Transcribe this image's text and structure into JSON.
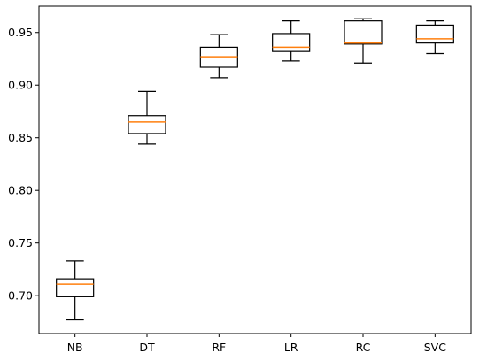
{
  "chart_data": {
    "type": "box",
    "title": "",
    "xlabel": "",
    "ylabel": "",
    "categories": [
      "NB",
      "DT",
      "RF",
      "LR",
      "RC",
      "SVC"
    ],
    "boxes": [
      {
        "category": "NB",
        "whisker_low": 0.677,
        "q1": 0.699,
        "median": 0.711,
        "q3": 0.716,
        "whisker_high": 0.733
      },
      {
        "category": "DT",
        "whisker_low": 0.844,
        "q1": 0.854,
        "median": 0.865,
        "q3": 0.871,
        "whisker_high": 0.894
      },
      {
        "category": "RF",
        "whisker_low": 0.907,
        "q1": 0.917,
        "median": 0.927,
        "q3": 0.936,
        "whisker_high": 0.948
      },
      {
        "category": "LR",
        "whisker_low": 0.923,
        "q1": 0.932,
        "median": 0.936,
        "q3": 0.949,
        "whisker_high": 0.961
      },
      {
        "category": "RC",
        "whisker_low": 0.921,
        "q1": 0.939,
        "median": 0.94,
        "q3": 0.961,
        "whisker_high": 0.963
      },
      {
        "category": "SVC",
        "whisker_low": 0.93,
        "q1": 0.94,
        "median": 0.944,
        "q3": 0.957,
        "whisker_high": 0.961
      }
    ],
    "ylim": [
      0.664,
      0.975
    ],
    "yticks": [
      0.7,
      0.75,
      0.8,
      0.85,
      0.9,
      0.95
    ],
    "ytick_labels": [
      "0.70",
      "0.75",
      "0.80",
      "0.85",
      "0.90",
      "0.95"
    ],
    "grid": false,
    "legend": "none",
    "colors": {
      "box": "#000000",
      "median": "#ff7f0e",
      "background": "#ffffff"
    }
  }
}
